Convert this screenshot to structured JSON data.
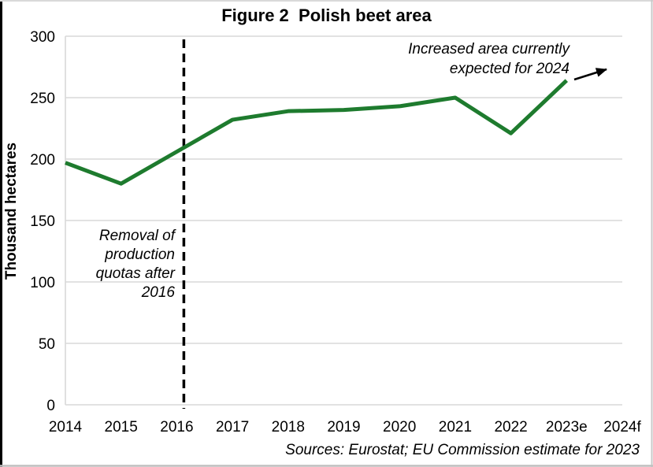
{
  "figure": {
    "title": "Figure 2  Polish beet area",
    "y_axis_title": "Thousand hectares",
    "annotations": {
      "quota_removal": "Removal of\nproduction\nquotas after\n2016",
      "expected_2024": "Increased area currently\nexpected for 2024"
    },
    "source": "Sources: Eurostat; EU Commission estimate for 2023"
  },
  "chart_data": {
    "type": "line",
    "title": "Figure 2  Polish beet area",
    "xlabel": "",
    "ylabel": "Thousand hectares",
    "categories": [
      "2014",
      "2015",
      "2016",
      "2017",
      "2018",
      "2019",
      "2020",
      "2021",
      "2022",
      "2023e",
      "2024f"
    ],
    "series": [
      {
        "name": "Polish beet area (thousand hectares)",
        "values": [
          197,
          180,
          206,
          232,
          239,
          240,
          243,
          250,
          221,
          264,
          null
        ]
      }
    ],
    "ylim": [
      0,
      300
    ],
    "ytick_step": 50,
    "grid": "horizontal gridlines only",
    "legend": "none",
    "colors": {
      "line": "#1e7b2e",
      "grid": "#d9d9d9",
      "dashed_line": "#000000",
      "arrow": "#000000",
      "text": "#000000"
    },
    "annotations": [
      {
        "type": "dashed-vertical-line",
        "x_between": [
          "2016",
          "2017"
        ],
        "label": "Removal of production quotas after 2016"
      },
      {
        "type": "arrow",
        "from_category": "2023e",
        "direction": "up-right",
        "label": "Increased area currently expected for 2024"
      }
    ]
  }
}
